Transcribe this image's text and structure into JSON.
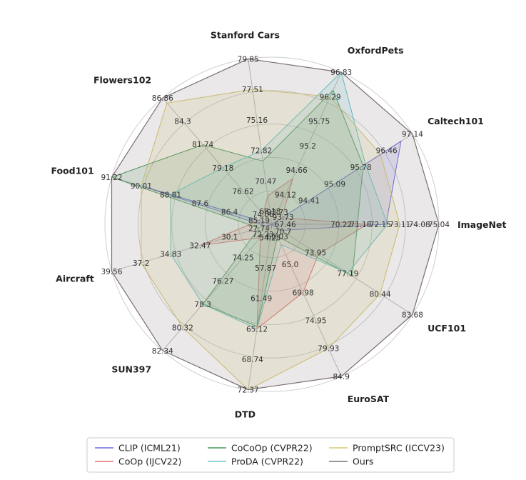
{
  "chart_data": {
    "type": "radar",
    "axes": [
      "ImageNet",
      "Caltech101",
      "OxfordPets",
      "Stanford Cars",
      "Flowers102",
      "Food101",
      "Aircraft",
      "SUN397",
      "DTD",
      "EuroSAT",
      "UCF101"
    ],
    "axis_ticks": [
      [
        "67.46",
        "70.22",
        "71.18",
        "72.15",
        "73.11",
        "74.08",
        "75.04"
      ],
      [
        "93.73",
        "94.41",
        "95.09",
        "95.78",
        "96.46",
        "97.14"
      ],
      [
        "93.73",
        "94.12",
        "94.66",
        "95.2",
        "95.75",
        "96.29",
        "96.83"
      ],
      [
        "68.18",
        "70.47",
        "72.82",
        "75.16",
        "77.51",
        "79.85"
      ],
      [
        "74.06",
        "76.62",
        "79.18",
        "81.74",
        "84.3",
        "86.86"
      ],
      [
        "85.19",
        "86.4",
        "87.6",
        "88.81",
        "90.01",
        "91.22"
      ],
      [
        "27.74",
        "30.1",
        "32.47",
        "34.83",
        "37.2",
        "39.56"
      ],
      [
        "72.23",
        "74.25",
        "76.27",
        "78.3",
        "80.32",
        "82.34"
      ],
      [
        "54.25",
        "57.87",
        "61.49",
        "65.12",
        "68.74",
        "72.37"
      ],
      [
        "60.03",
        "65.0",
        "69.98",
        "74.95",
        "79.93",
        "84.9"
      ],
      [
        "70.7",
        "73.95",
        "77.19",
        "80.44",
        "83.68"
      ]
    ],
    "series": [
      {
        "name": "CLIP (ICML21)",
        "color": "#6b6bdd",
        "values": [
          72.43,
          96.84,
          91.17,
          63.37,
          72.08,
          90.1,
          27.19,
          70.36,
          53.24,
          56.48,
          70.53
        ]
      },
      {
        "name": "CoOp (IJCV22)",
        "color": "#e07070",
        "values": [
          71.51,
          93.7,
          94.47,
          69.36,
          74.06,
          85.19,
          32.47,
          72.51,
          65.12,
          69.98,
          74.25
        ]
      },
      {
        "name": "CoCoOp (CVPR22)",
        "color": "#4a9a5a",
        "values": [
          71.02,
          95.84,
          96.43,
          72.01,
          81.71,
          91.22,
          27.74,
          78.27,
          64.85,
          60.04,
          77.64
        ]
      },
      {
        "name": "ProDA (CVPR22)",
        "color": "#5ec8d0",
        "values": [
          72.5,
          95.9,
          96.83,
          72.82,
          79.18,
          88.81,
          34.83,
          78.3,
          65.12,
          61.49,
          77.19
        ]
      },
      {
        "name": "PromptSRC (ICCV23)",
        "color": "#d8c870",
        "values": [
          73.11,
          96.3,
          96.29,
          77.51,
          86.3,
          90.01,
          37.2,
          80.32,
          72.37,
          79.93,
          80.44
        ]
      },
      {
        "name": "Ours",
        "color": "#7a6e6e",
        "values": [
          75.04,
          97.14,
          96.83,
          79.85,
          86.86,
          91.22,
          39.56,
          82.34,
          72.37,
          84.9,
          83.68
        ]
      }
    ],
    "legend_position": "bottom",
    "grid": true
  }
}
